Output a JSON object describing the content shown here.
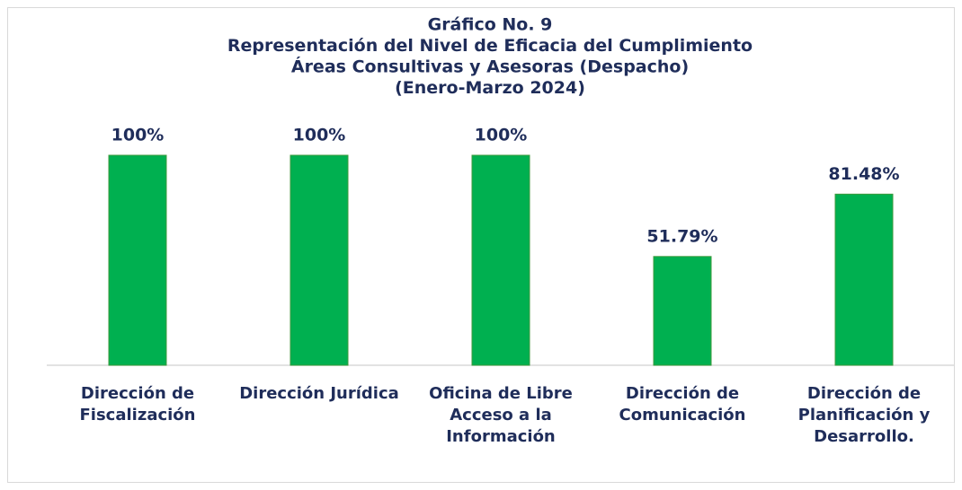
{
  "chart_data": {
    "type": "bar",
    "title": [
      "Gráfico No. 9",
      "Representación del Nivel de Eficacia del Cumplimiento",
      "Áreas Consultivas y Asesoras (Despacho)",
      "(Enero-Marzo 2024)"
    ],
    "categories": [
      "Dirección de Fiscalización",
      "Dirección Jurídica",
      "Oficina de Libre Acceso a la Información",
      "Dirección de Comunicación",
      "Dirección de Planificación y Desarrollo."
    ],
    "values": [
      100,
      100,
      100,
      51.79,
      81.48
    ],
    "value_labels": [
      "100%",
      "100%",
      "100%",
      "51.79%",
      "81.48%"
    ],
    "color": "#00b050",
    "ylim": [
      0,
      100
    ]
  }
}
